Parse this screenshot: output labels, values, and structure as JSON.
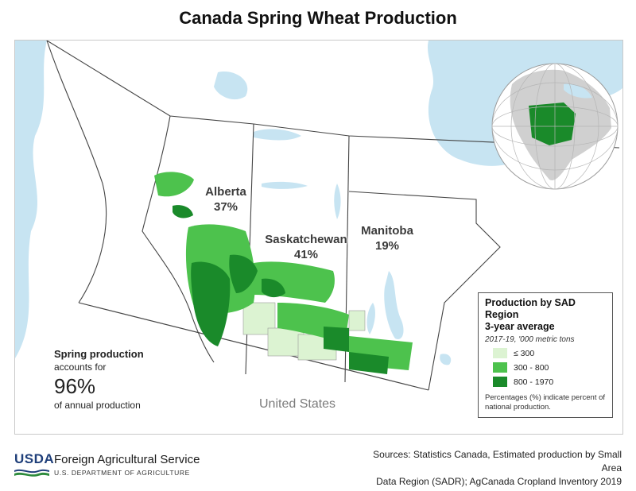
{
  "title": "Canada Spring Wheat Production",
  "map": {
    "provinces": [
      {
        "name": "Alberta",
        "share": "37%"
      },
      {
        "name": "Saskatchewan",
        "share": "41%"
      },
      {
        "name": "Manitoba",
        "share": "19%"
      }
    ],
    "country_label": "United States",
    "spring_note": {
      "heading": "Spring production",
      "line2": "accounts for",
      "value": "96%",
      "line4": "of annual production"
    },
    "colors": {
      "water": "#c7e4f2",
      "land": "#ffffff",
      "low": "#dcf3d2",
      "mid": "#4dc24d",
      "high": "#1a8a2a"
    }
  },
  "legend": {
    "title": "Production by SAD Region",
    "title2": "3-year average",
    "subtitle": "2017-19, '000 metric tons",
    "classes": [
      {
        "label": "≤ 300",
        "color": "#dcf3d2"
      },
      {
        "label": "300 - 800",
        "color": "#4dc24d"
      },
      {
        "label": "800 - 1970",
        "color": "#1a8a2a"
      }
    ],
    "note": "Percentages (%) indicate percent of national production."
  },
  "footer": {
    "logo_text": "USDA",
    "agency": "Foreign Agricultural Service",
    "department": "U.S. DEPARTMENT OF AGRICULTURE",
    "sources_line1": "Sources: Statistics Canada, Estimated production by Small Area",
    "sources_line2": "Data Region (SADR); AgCanada Cropland Inventory 2019"
  }
}
